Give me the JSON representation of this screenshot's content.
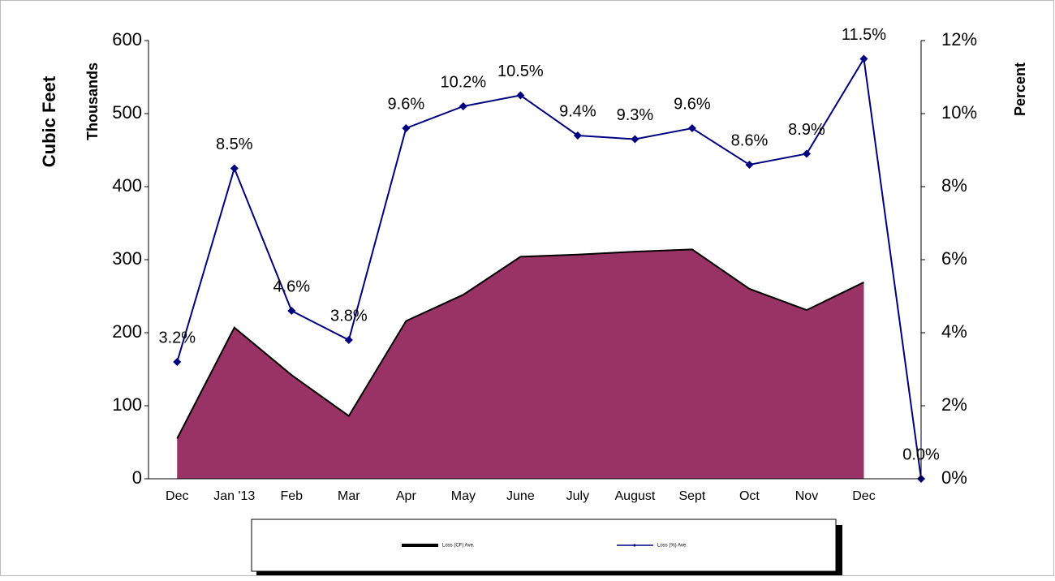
{
  "chart_data": {
    "type": "combo",
    "y_label": "Cubic Feet",
    "y_unit_label": "Thousands",
    "y2_label": "Percent",
    "categories": [
      "Dec",
      "Jan '13",
      "Feb",
      "Mar",
      "Apr",
      "May",
      "June",
      "July",
      "August",
      "Sept",
      "Oct",
      "Nov",
      "Dec",
      null
    ],
    "ylim": [
      0,
      600
    ],
    "yticks": [
      0,
      100,
      200,
      300,
      400,
      500,
      600
    ],
    "y2lim": [
      0,
      12
    ],
    "y2ticks": [
      {
        "value": 0,
        "label": "0%"
      },
      {
        "value": 2,
        "label": "2%"
      },
      {
        "value": 4,
        "label": "4%"
      },
      {
        "value": 6,
        "label": "6%"
      },
      {
        "value": 8,
        "label": "8%"
      },
      {
        "value": 10,
        "label": "10%"
      },
      {
        "value": 12,
        "label": "12%"
      }
    ],
    "series": [
      {
        "name": "Loss (CF) Ave.",
        "type": "area",
        "color": "#993366",
        "values": [
          55,
          207,
          142,
          86,
          216,
          252,
          304,
          307,
          311,
          314,
          260,
          231,
          269,
          null
        ]
      },
      {
        "name": "Loss (%) Ave.",
        "type": "line",
        "axis": "y2",
        "color": "#000080",
        "values": [
          3.2,
          8.5,
          4.6,
          3.8,
          9.6,
          10.2,
          10.5,
          9.4,
          9.3,
          9.6,
          8.6,
          8.9,
          11.5,
          0.0
        ],
        "value_labels": [
          "3.2%",
          "8.5%",
          "4.6%",
          "3.8%",
          "9.6%",
          "10.2%",
          "10.5%",
          "9.4%",
          "9.3%",
          "9.6%",
          "8.6%",
          "8.9%",
          "11.5%",
          "0.0%"
        ]
      }
    ]
  }
}
